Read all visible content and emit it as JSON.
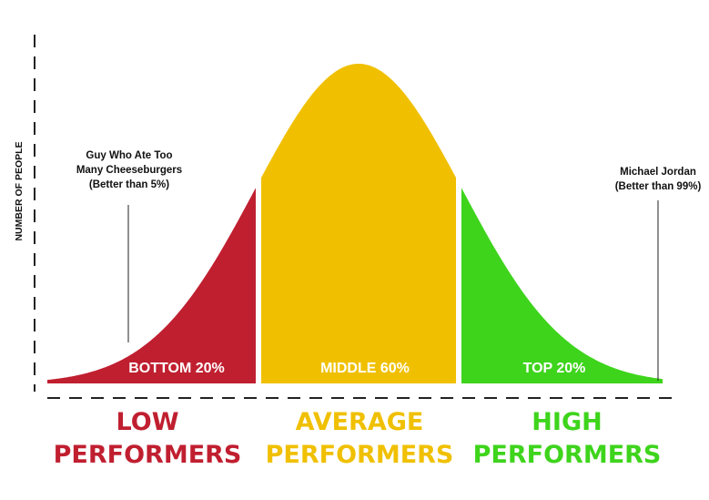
{
  "chart_data": {
    "type": "area",
    "ylabel": "NUMBER OF PEOPLE",
    "xlabel": "",
    "colors": {
      "low": "#c01f30",
      "average": "#f0c000",
      "high": "#3ed41c",
      "axis": "#222222",
      "background": "#ffffff"
    },
    "segments": [
      {
        "key": "low",
        "label": "BOTTOM 20%",
        "share_percent": 20,
        "category_line1": "LOW",
        "category_line2": "PERFORMERS",
        "color": "#c01f30"
      },
      {
        "key": "average",
        "label": "MIDDLE 60%",
        "share_percent": 60,
        "category_line1": "AVERAGE",
        "category_line2": "PERFORMERS",
        "color": "#f0c000"
      },
      {
        "key": "high",
        "label": "TOP 20%",
        "share_percent": 20,
        "category_line1": "HIGH",
        "category_line2": "PERFORMERS",
        "color": "#3ed41c"
      }
    ],
    "annotations": [
      {
        "key": "cheeseburgers",
        "lines": [
          "Guy Who Ate Too",
          "Many Cheeseburgers",
          "(Better than 5%)"
        ],
        "percentile": 5
      },
      {
        "key": "jordan",
        "lines": [
          "Michael Jordan",
          "(Better than 99%)"
        ],
        "percentile": 99
      }
    ],
    "axes": {
      "y_dashed": true,
      "x_dashed": true,
      "ticks": false
    },
    "grid": false,
    "legend": "none"
  }
}
